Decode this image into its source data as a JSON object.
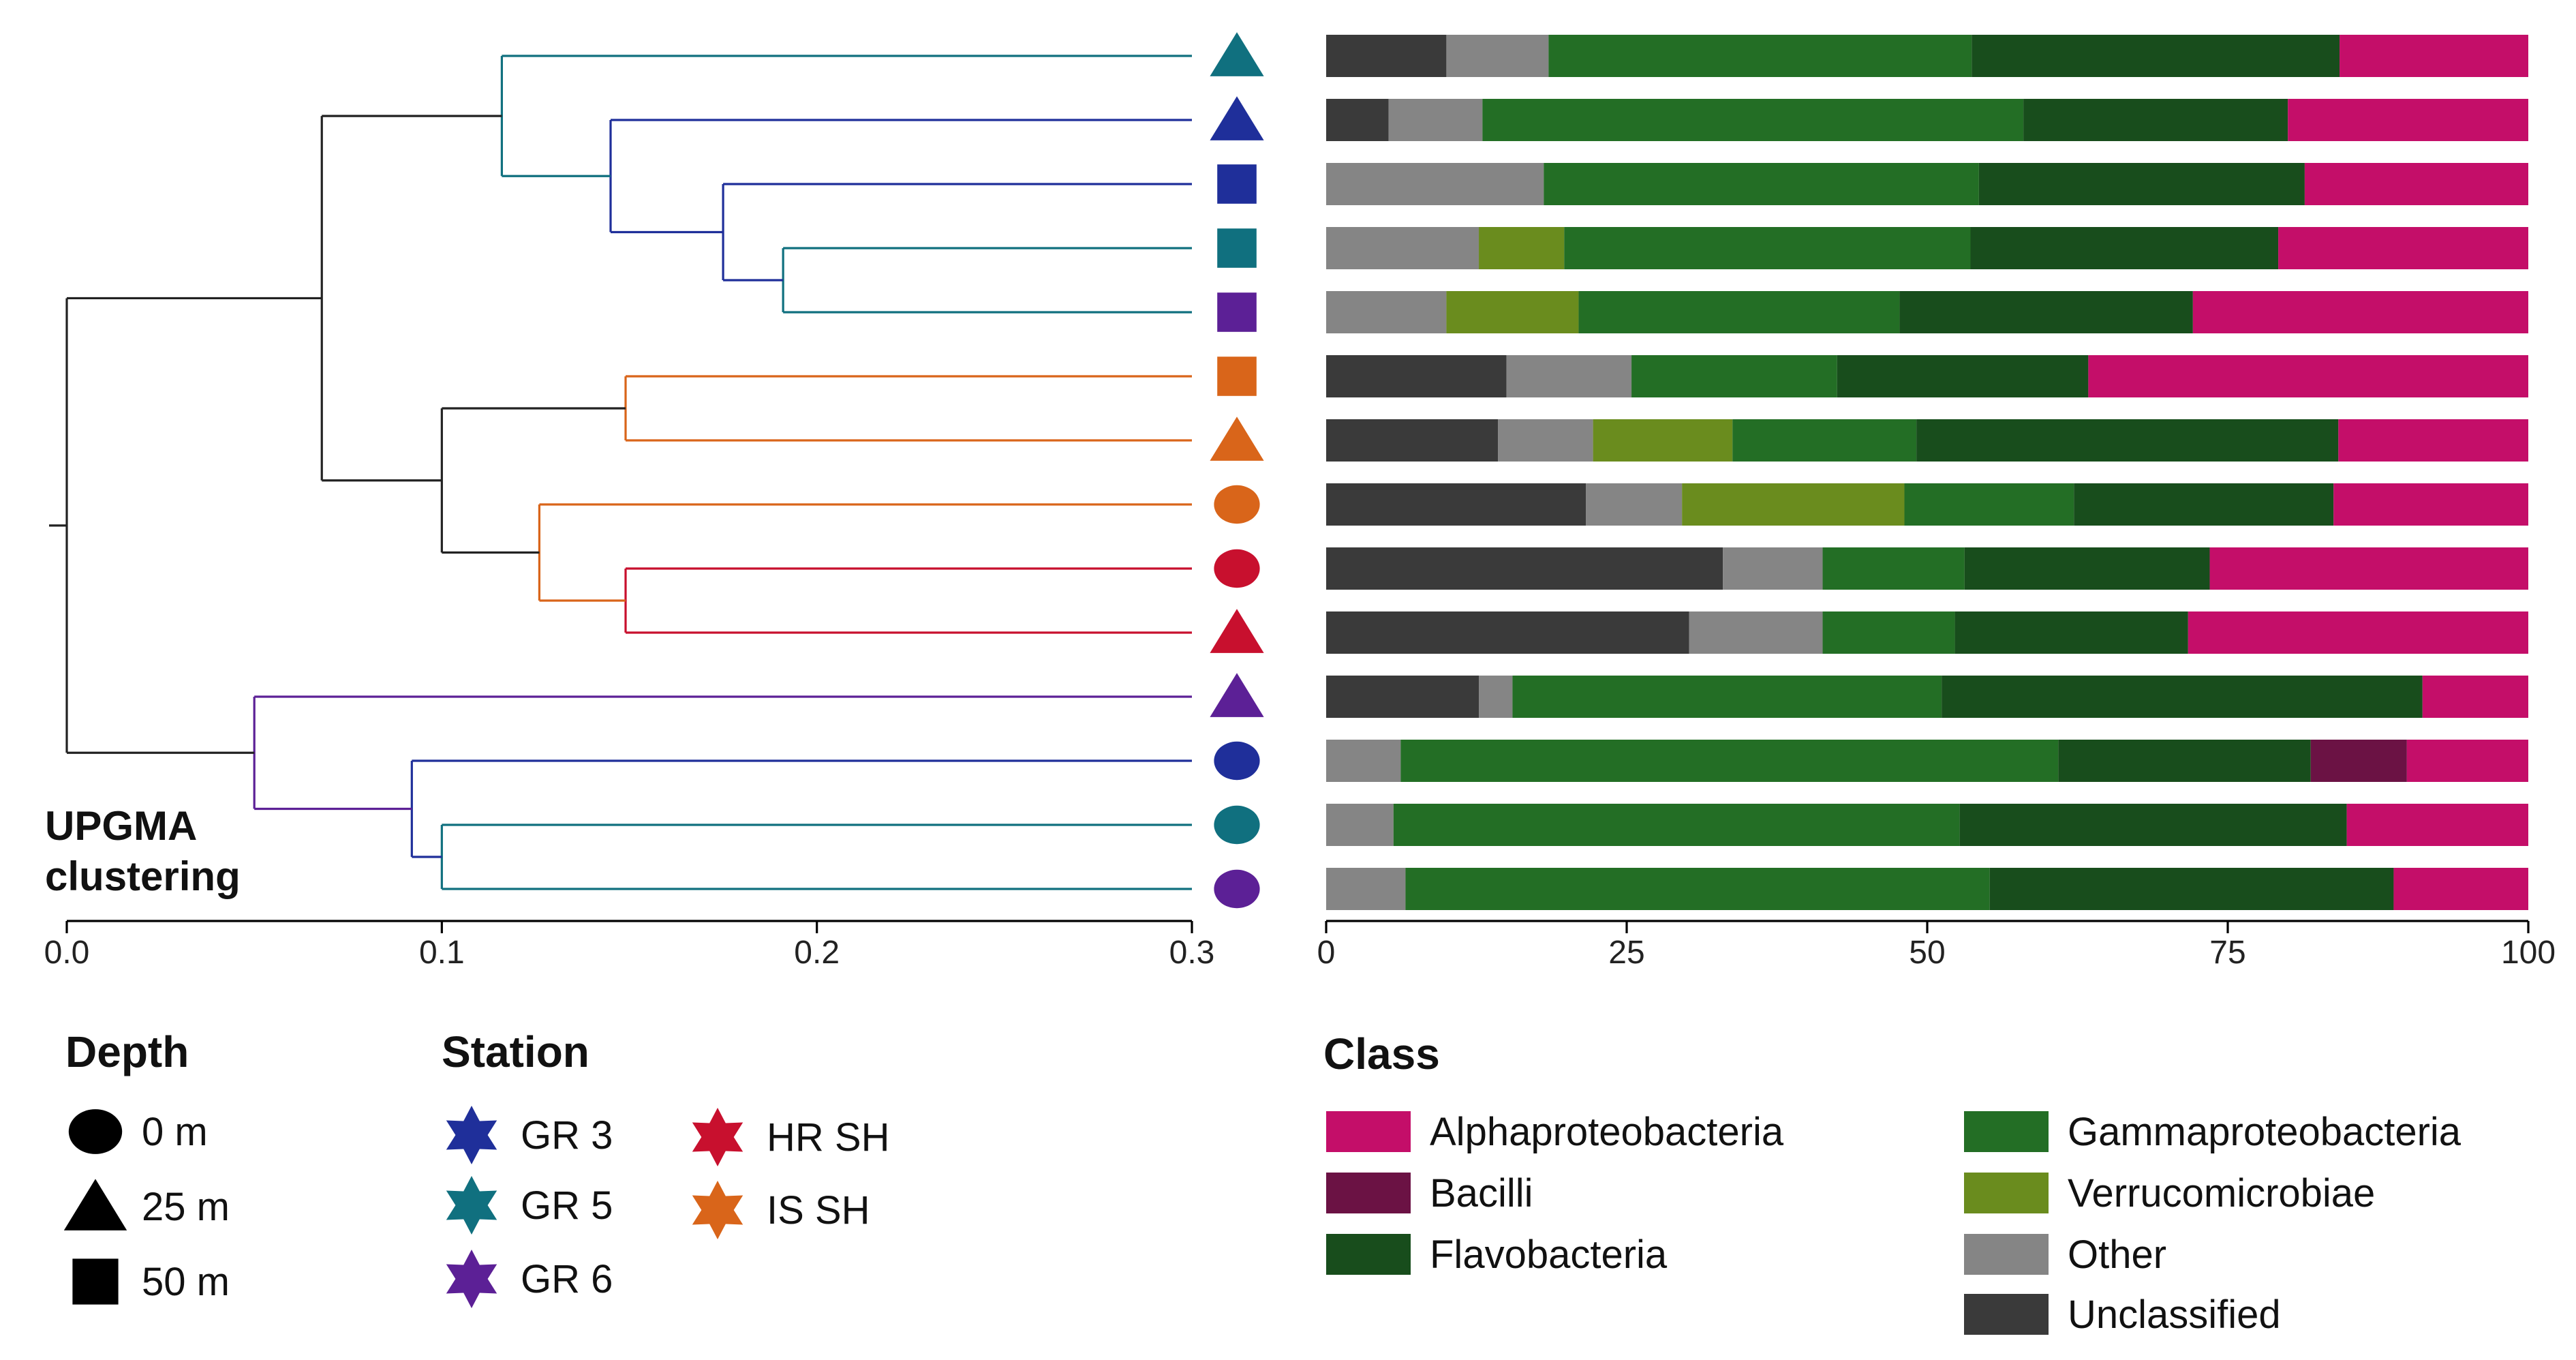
{
  "colors": {
    "GR 3": "#1f2f9a",
    "GR 5": "#10707f",
    "GR 6": "#5c2096",
    "HR SH": "#c8102e",
    "IS SH": "#d9651a",
    "axis": "#000000",
    "tree_root": "#222222"
  },
  "dendrogram": {
    "label": [
      "UPGMA",
      "clustering"
    ],
    "axis": {
      "ticks": [
        0.0,
        0.1,
        0.2,
        0.3
      ],
      "tick_labels": [
        "0.0",
        "0.1",
        "0.2",
        "0.3"
      ]
    },
    "leaves": [
      {
        "station": "GR 5",
        "depth": "25 m"
      },
      {
        "station": "GR 3",
        "depth": "25 m"
      },
      {
        "station": "GR 3",
        "depth": "50 m"
      },
      {
        "station": "GR 5",
        "depth": "50 m"
      },
      {
        "station": "GR 6",
        "depth": "50 m"
      },
      {
        "station": "IS SH",
        "depth": "50 m"
      },
      {
        "station": "IS SH",
        "depth": "25 m"
      },
      {
        "station": "IS SH",
        "depth": "0 m"
      },
      {
        "station": "HR SH",
        "depth": "0 m"
      },
      {
        "station": "HR SH",
        "depth": "25 m"
      },
      {
        "station": "GR 6",
        "depth": "25 m"
      },
      {
        "station": "GR 3",
        "depth": "0 m"
      },
      {
        "station": "GR 5",
        "depth": "0 m"
      },
      {
        "station": "GR 6",
        "depth": "0 m"
      }
    ],
    "merges": [
      {
        "children": [
          3,
          4
        ],
        "height": 0.191,
        "color": "GR 5"
      },
      {
        "children": [
          2,
          14
        ],
        "height": 0.175,
        "color": "GR 3"
      },
      {
        "children": [
          1,
          15
        ],
        "height": 0.145,
        "color": "GR 3"
      },
      {
        "children": [
          0,
          16
        ],
        "height": 0.116,
        "color": "GR 5"
      },
      {
        "children": [
          5,
          6
        ],
        "height": 0.149,
        "color": "IS SH"
      },
      {
        "children": [
          8,
          9
        ],
        "height": 0.149,
        "color": "HR SH"
      },
      {
        "children": [
          7,
          19
        ],
        "height": 0.126,
        "color": "IS SH"
      },
      {
        "children": [
          18,
          20
        ],
        "height": 0.1,
        "color": "root"
      },
      {
        "children": [
          17,
          21
        ],
        "height": 0.068,
        "color": "root"
      },
      {
        "children": [
          12,
          13
        ],
        "height": 0.1,
        "color": "GR 5"
      },
      {
        "children": [
          11,
          23
        ],
        "height": 0.092,
        "color": "GR 3"
      },
      {
        "children": [
          10,
          24
        ],
        "height": 0.05,
        "color": "GR 6"
      },
      {
        "children": [
          22,
          25
        ],
        "height": 0.0,
        "color": "root"
      }
    ]
  },
  "chart_data": {
    "type": "bar",
    "orientation": "horizontal",
    "stacked": true,
    "xlim": [
      0,
      100
    ],
    "xticks": [
      0,
      25,
      50,
      75,
      100
    ],
    "xtick_labels": [
      "0",
      "25",
      "50",
      "75",
      "100"
    ],
    "categories": [
      "GR 5 25 m",
      "GR 3 25 m",
      "GR 3 50 m",
      "GR 5 50 m",
      "GR 6 50 m",
      "IS SH 50 m",
      "IS SH 25 m",
      "IS SH 0 m",
      "HR SH 0 m",
      "HR SH 25 m",
      "GR 6 25 m",
      "GR 3 0 m",
      "GR 5 0 m",
      "GR 6 0 m"
    ],
    "series": [
      {
        "name": "Unclassified",
        "color": "#3a3a3a",
        "values": [
          10.0,
          5.2,
          0,
          0,
          0,
          15.0,
          14.3,
          21.6,
          33.0,
          30.2,
          12.7,
          0,
          0,
          0
        ]
      },
      {
        "name": "Other",
        "color": "#858585",
        "values": [
          8.5,
          7.8,
          18.1,
          12.7,
          10.0,
          10.4,
          7.9,
          8.0,
          8.3,
          11.1,
          2.8,
          6.2,
          5.6,
          6.6
        ]
      },
      {
        "name": "Verrucomicrobiae",
        "color": "#6a8c1e",
        "values": [
          0,
          0,
          0,
          7.1,
          11.0,
          0,
          11.6,
          18.5,
          0,
          0,
          0,
          0,
          0,
          0
        ]
      },
      {
        "name": "Gammaproteobacteria",
        "color": "#236e25",
        "values": [
          35.2,
          45.0,
          36.2,
          33.8,
          26.7,
          17.1,
          15.3,
          14.1,
          11.8,
          11.0,
          35.7,
          54.7,
          47.1,
          48.6
        ]
      },
      {
        "name": "Flavobacteria",
        "color": "#184d1c",
        "values": [
          30.6,
          22.0,
          27.1,
          25.6,
          24.4,
          20.9,
          35.1,
          21.6,
          20.4,
          19.4,
          40.0,
          21.0,
          32.2,
          33.6
        ]
      },
      {
        "name": "Bacilli",
        "color": "#6b1244",
        "values": [
          0,
          0,
          0,
          0,
          0,
          0,
          0,
          0,
          0,
          0,
          0,
          8.0,
          0,
          0
        ]
      },
      {
        "name": "Alphaproteobacteria",
        "color": "#c40e69",
        "values": [
          15.7,
          20.0,
          18.6,
          20.8,
          27.9,
          36.6,
          15.8,
          16.2,
          26.5,
          28.3,
          8.8,
          10.1,
          15.1,
          11.2
        ]
      }
    ],
    "legend_title": "Class",
    "legend_entries": [
      {
        "name": "Alphaproteobacteria",
        "color": "#c40e69"
      },
      {
        "name": "Gammaproteobacteria",
        "color": "#236e25"
      },
      {
        "name": "Bacilli",
        "color": "#6b1244"
      },
      {
        "name": "Verrucomicrobiae",
        "color": "#6a8c1e"
      },
      {
        "name": "Flavobacteria",
        "color": "#184d1c"
      },
      {
        "name": "Other",
        "color": "#858585"
      },
      {
        "name": "Unclassified",
        "color": "#3a3a3a"
      }
    ]
  },
  "legends": {
    "depth": {
      "title": "Depth",
      "items": [
        {
          "shape": "circle",
          "label": "0 m"
        },
        {
          "shape": "triangle",
          "label": "25 m"
        },
        {
          "shape": "square",
          "label": "50 m"
        }
      ]
    },
    "station": {
      "title": "Station",
      "items": [
        {
          "label": "GR 3"
        },
        {
          "label": "GR 5"
        },
        {
          "label": "GR 6"
        },
        {
          "label": "HR SH"
        },
        {
          "label": "IS SH"
        }
      ]
    }
  }
}
